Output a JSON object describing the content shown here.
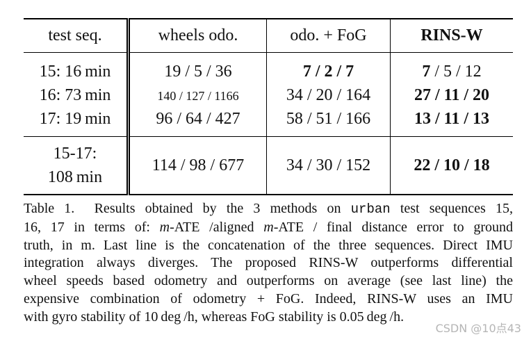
{
  "table": {
    "header": [
      {
        "text": "test seq."
      },
      {
        "text": "wheels odo."
      },
      {
        "text": "odo. + FoG"
      },
      {
        "text": "RINS-W",
        "bold": true
      }
    ],
    "rows": [
      [
        {
          "text": "15: 16 min"
        },
        {
          "text": "19 / 5 / 36"
        },
        {
          "text": "7 / 2 / 7",
          "bold": true
        },
        {
          "runs": [
            {
              "text": "7",
              "bold": true
            },
            {
              "text": " / 5 / 12"
            }
          ]
        }
      ],
      [
        {
          "text": "16: 73 min"
        },
        {
          "text": "140 / 127 / 1166",
          "small": true
        },
        {
          "text": "34 / 20 / 164"
        },
        {
          "text": "27 / 11 / 20",
          "bold": true
        }
      ],
      [
        {
          "text": "17: 19 min"
        },
        {
          "text": "96 / 64 / 427"
        },
        {
          "text": "58 / 51 / 166"
        },
        {
          "text": "13 / 11 / 13",
          "bold": true
        }
      ],
      [
        {
          "lines": [
            "15-17:",
            "108 min"
          ]
        },
        {
          "text": "114 / 98 / 677"
        },
        {
          "text": "34 / 30 / 152"
        },
        {
          "text": "22 / 10 / 18",
          "bold": true
        }
      ]
    ]
  },
  "caption": [
    [
      {
        "text": "Table 1.  Results obtained by the 3 methods on "
      },
      {
        "text": "urban",
        "style": "code"
      },
      {
        "text": " test sequences 15,"
      }
    ],
    [
      {
        "text": "16, 17 in terms of: "
      },
      {
        "text": "m",
        "style": "italic"
      },
      {
        "text": "-ATE /aligned "
      },
      {
        "text": "m",
        "style": "italic"
      },
      {
        "text": "-ATE / final distance error to ground"
      }
    ],
    [
      {
        "text": "truth, in m. Last line is the concatenation of the three sequences. Direct IMU"
      }
    ],
    [
      {
        "text": "integration always diverges. The proposed RINS-W outperforms differential"
      }
    ],
    [
      {
        "text": "wheel speeds based odometry and outperforms on average (see last line) the"
      }
    ],
    [
      {
        "text": "expensive combination of odometry + FoG. Indeed, RINS-W uses an IMU"
      }
    ],
    [
      {
        "text": "with gyro stability of 10 deg /h, whereas FoG stability is 0.05 deg /h."
      }
    ]
  ],
  "watermark": "CSDN @10点43"
}
